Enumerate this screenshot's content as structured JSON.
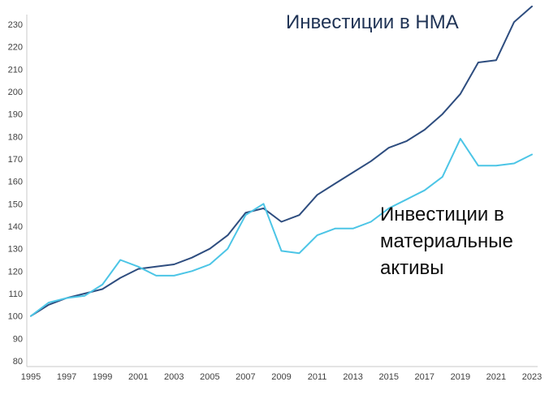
{
  "chart_data": {
    "type": "line",
    "x": [
      1995,
      1996,
      1997,
      1998,
      1999,
      2000,
      2001,
      2002,
      2003,
      2004,
      2005,
      2006,
      2007,
      2008,
      2009,
      2010,
      2011,
      2012,
      2013,
      2014,
      2015,
      2016,
      2017,
      2018,
      2019,
      2020,
      2021,
      2022,
      2023
    ],
    "series": [
      {
        "name": "Инвестиции в НМА",
        "color": "#2e4d7f",
        "values": [
          100,
          105,
          108,
          110,
          112,
          117,
          121,
          122,
          123,
          126,
          130,
          136,
          146,
          148,
          142,
          145,
          154,
          159,
          164,
          169,
          175,
          178,
          183,
          190,
          199,
          213,
          214,
          231,
          238
        ]
      },
      {
        "name": "Инвестиции в материальные активы",
        "color": "#4cc5e6",
        "values": [
          100,
          106,
          108,
          109,
          114,
          125,
          122,
          118,
          118,
          120,
          123,
          130,
          145,
          150,
          129,
          128,
          136,
          139,
          139,
          142,
          148,
          152,
          156,
          162,
          179,
          167,
          167,
          168,
          172
        ]
      }
    ],
    "ylim": [
      80,
      230
    ],
    "yticks": [
      80,
      90,
      100,
      110,
      120,
      130,
      140,
      150,
      160,
      170,
      180,
      190,
      200,
      210,
      220,
      230
    ],
    "xticks": [
      1995,
      1997,
      1999,
      2001,
      2003,
      2005,
      2007,
      2009,
      2011,
      2013,
      2015,
      2017,
      2019,
      2021,
      2023
    ],
    "grid": "off",
    "legend": "none",
    "axis_color": "#c9c9c9",
    "annotations": [
      {
        "text": "Инвестиции в НМА"
      },
      {
        "text": "Инвестиции в\nматериальные\nактивы"
      }
    ]
  }
}
